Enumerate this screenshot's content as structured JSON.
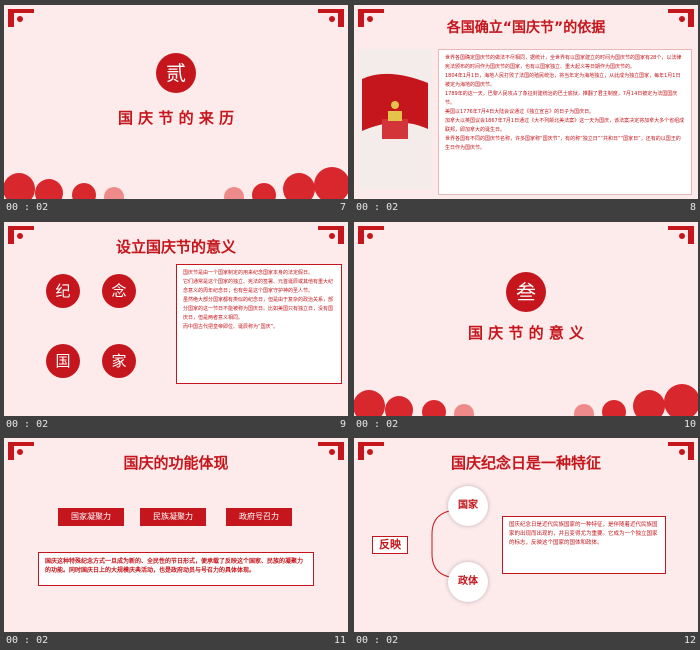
{
  "colors": {
    "red": "#c4161c",
    "slide_bg": "#fdeaea",
    "frame_bg": "#3f3f3f"
  },
  "slides": [
    {
      "id": 7,
      "number": "7",
      "duration": "00 : 02",
      "seal": "贰",
      "title": "国 庆 节 的 来 历"
    },
    {
      "id": 8,
      "number": "8",
      "duration": "00 : 02",
      "title": "各国确立“国庆节”的依据",
      "image_icon": "flag-tiananmen-image",
      "paragraphs": [
        "世界各国确定国庆节的做法不尽相同，据统计，全世界有以国家建立的时间为国庆节的国家有28个，以法律宪法颁布的时间作为国庆节的国家，也有以国家独立、重大起义等日期作为国庆节的。",
        "1804年1月1日，海地人民打败了法国的殖民统治，将当年定为海地独立，从此成为独立国家，每年1月1日被定为海地的国庆节。",
        "1789年的这一天，巴黎人民攻占了象征封建统治的巴士底狱，推翻了君主制度，7月14日被定为法国国庆节。",
        "美国以1776年7月4日大陆会议通过《独立宣言》的日子为国庆日。",
        "加拿大以英国议会1867年7月1日通过《大不列颠北美法案》这一天为国庆，该法案决定将加拿大多个省组成联邦，即加拿大的诞生日。",
        "世界各国有不同的国庆节名称，许多国家称“国庆节”，有的称“独立日”“共和日”“国家日”，还有的以国王的生日作为国庆节。"
      ]
    },
    {
      "id": 9,
      "number": "9",
      "duration": "00 : 02",
      "title": "设立国庆节的意义",
      "circles": [
        "纪",
        "念",
        "国",
        "家"
      ],
      "paragraphs": [
        "国庆节是由一个国家制定的用来纪念国家本身的法定假日。",
        "它们通常是这个国家的独立、宪法的签署、元首诞辰或其他有重大纪念意义的周年纪念日；也有些是这个国家守护神的圣人节。",
        "虽然绝大部分国家都有类似的纪念日，但是由于复杂的政治关系，部分国家的这一节日不能被称为国庆日。比如美国只有独立日，没有国庆日，但是两者意义相同。",
        "而中国古代把皇帝即位、诞辰称为“国庆”。"
      ]
    },
    {
      "id": 10,
      "number": "10",
      "duration": "00 : 02",
      "seal": "叁",
      "title": "国 庆 节 的 意 义"
    },
    {
      "id": 11,
      "number": "11",
      "duration": "00 : 02",
      "title": "国庆的功能体现",
      "buttons": [
        "国家凝聚力",
        "民族凝聚力",
        "政府号召力"
      ],
      "note": "国庆这种特殊纪念方式一旦成为新的、全民性的节日形式，便承载了反映这个国家、民族的凝聚力的功能。同时国庆日上的大规模庆典活动，也是政府动员与号召力的具体体现。"
    },
    {
      "id": 12,
      "number": "12",
      "duration": "00 : 02",
      "title": "国庆纪念日是一种特征",
      "reflect": "反映",
      "bubbles": [
        "国家",
        "政体"
      ],
      "note": "国庆纪念日是近代民族国家的一种特征，是伴随着近代民族国家的出现而出现的，并且变得尤为重要。它成为一个独立国家的标志，反映这个国家的国体和政体。"
    }
  ]
}
